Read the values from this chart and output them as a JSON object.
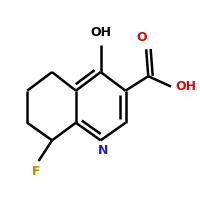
{
  "bg_color": "#ffffff",
  "bond_color": "#000000",
  "bond_lw": 1.8,
  "dbo": 0.018,
  "colors": {
    "N": "#2222cc",
    "O": "#cc1111",
    "F": "#bb8800",
    "C": "#000000"
  },
  "label_fontsize": 9.0,
  "figsize": [
    2.0,
    2.0
  ],
  "dpi": 100
}
